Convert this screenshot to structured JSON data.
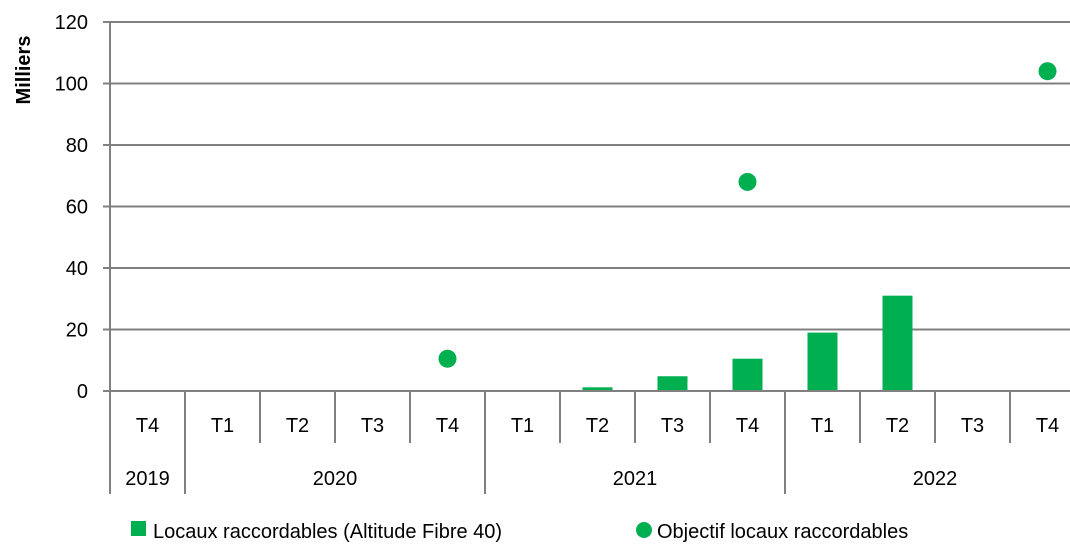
{
  "chart_data": {
    "type": "bar",
    "ylabel": "Milliers",
    "ylim": [
      0,
      120
    ],
    "yticks": [
      0,
      20,
      40,
      60,
      80,
      100,
      120
    ],
    "grid": true,
    "categories": [
      "T4",
      "T1",
      "T2",
      "T3",
      "T4",
      "T1",
      "T2",
      "T3",
      "T4",
      "T1",
      "T2",
      "T3",
      "T4"
    ],
    "years": [
      {
        "label": "2019",
        "span": 1
      },
      {
        "label": "2020",
        "span": 4
      },
      {
        "label": "2021",
        "span": 4
      },
      {
        "label": "2022",
        "span": 4
      }
    ],
    "series": [
      {
        "name": "Locaux raccordables (Altitude Fibre 40)",
        "kind": "bar",
        "color": "#00b050",
        "values": [
          null,
          null,
          null,
          null,
          null,
          null,
          1.2,
          4.8,
          10.5,
          19,
          31,
          null,
          null
        ]
      },
      {
        "name": "Objectif locaux raccordables",
        "kind": "scatter",
        "color": "#00b050",
        "values": [
          null,
          null,
          null,
          null,
          10.5,
          null,
          null,
          null,
          68,
          null,
          null,
          null,
          104
        ]
      }
    ],
    "legend": {
      "position": "bottom"
    }
  }
}
